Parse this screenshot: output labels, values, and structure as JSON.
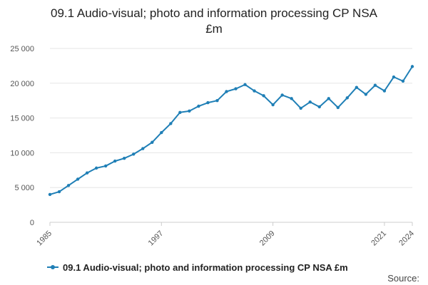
{
  "title_lines": [
    "09.1 Audio-visual; photo and information processing CP NSA",
    "£m"
  ],
  "legend": {
    "label": "09.1 Audio-visual; photo and information processing CP NSA £m"
  },
  "source": "Source:",
  "colors": {
    "series": "#1f7fb6",
    "gridline": "#e6e6e6",
    "axis": "#cccccc",
    "text": "#555555"
  },
  "chart_data": {
    "type": "line",
    "title": "09.1 Audio-visual; photo and information processing CP NSA £m",
    "xlabel": "",
    "ylabel": "",
    "ylim": [
      0,
      25000
    ],
    "xlim": [
      1985,
      2024
    ],
    "grid": true,
    "legend_position": "bottom-left",
    "y_ticks": [
      0,
      5000,
      10000,
      15000,
      20000,
      25000
    ],
    "y_tick_labels": [
      "0",
      "5 000",
      "10 000",
      "15 000",
      "20 000",
      "25 000"
    ],
    "x_tick_labels": [
      "1985",
      "1997",
      "2009",
      "2021",
      "2024"
    ],
    "series": [
      {
        "name": "09.1 Audio-visual; photo and information processing CP NSA £m",
        "x": [
          1985,
          1986,
          1987,
          1988,
          1989,
          1990,
          1991,
          1992,
          1993,
          1994,
          1995,
          1996,
          1997,
          1998,
          1999,
          2000,
          2001,
          2002,
          2003,
          2004,
          2005,
          2006,
          2007,
          2008,
          2009,
          2010,
          2011,
          2012,
          2013,
          2014,
          2015,
          2016,
          2017,
          2018,
          2019,
          2020,
          2021,
          2022,
          2023,
          2024
        ],
        "values": [
          4000,
          4400,
          5300,
          6200,
          7100,
          7800,
          8100,
          8800,
          9200,
          9800,
          10600,
          11500,
          12900,
          14200,
          15800,
          16000,
          16700,
          17200,
          17500,
          18800,
          19200,
          19800,
          18900,
          18200,
          16900,
          18300,
          17800,
          16400,
          17300,
          16600,
          17800,
          16500,
          17900,
          19400,
          18400,
          19700,
          18900,
          20900,
          20300,
          22400
        ]
      }
    ]
  }
}
